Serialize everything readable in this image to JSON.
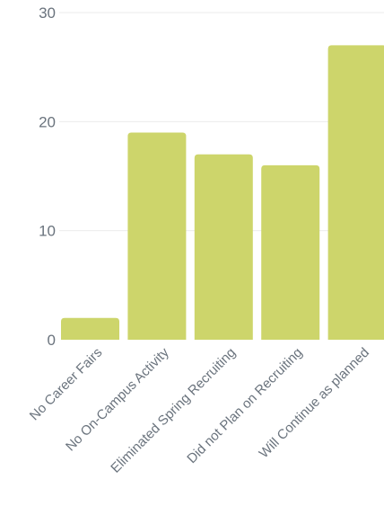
{
  "chart_data": {
    "type": "bar",
    "categories": [
      "No Career Fairs",
      "No On-Campus Activity",
      "Eliminated Spring Recruiting",
      "Did not Plan on Recruiting",
      "Will Continue as planned"
    ],
    "values": [
      2,
      19,
      17,
      16,
      27
    ],
    "ylim": [
      0,
      30
    ],
    "yticks": [
      0,
      10,
      20,
      30
    ],
    "grid": true,
    "colors": {
      "bar": "#cdd56b",
      "grid": "#ebebeb",
      "tick_text": "#6a737d"
    }
  }
}
